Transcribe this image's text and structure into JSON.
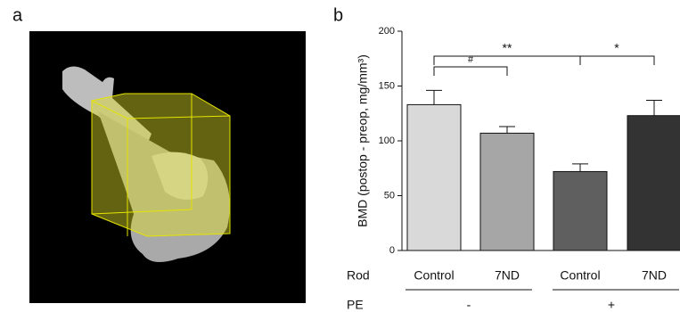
{
  "panel_a": {
    "label": "a"
  },
  "chart_data": {
    "type": "bar",
    "panel_label": "b",
    "ylabel": "BMD (postop - preop, mg/mm³)",
    "categories": [
      "Control",
      "7ND",
      "Control",
      "7ND"
    ],
    "values": [
      133,
      107,
      72,
      123
    ],
    "errors": [
      13,
      6,
      7,
      14
    ],
    "colors": [
      "#d9d9d9",
      "#a6a6a6",
      "#5f5f5f",
      "#333333"
    ],
    "ylim": [
      0,
      200
    ],
    "yticks": [
      0,
      50,
      100,
      150,
      200
    ],
    "x_row_labels": [
      "Rod",
      "PE"
    ],
    "pe_groups": [
      "-",
      "+"
    ],
    "annotations": [
      "#",
      "**",
      "*"
    ]
  }
}
